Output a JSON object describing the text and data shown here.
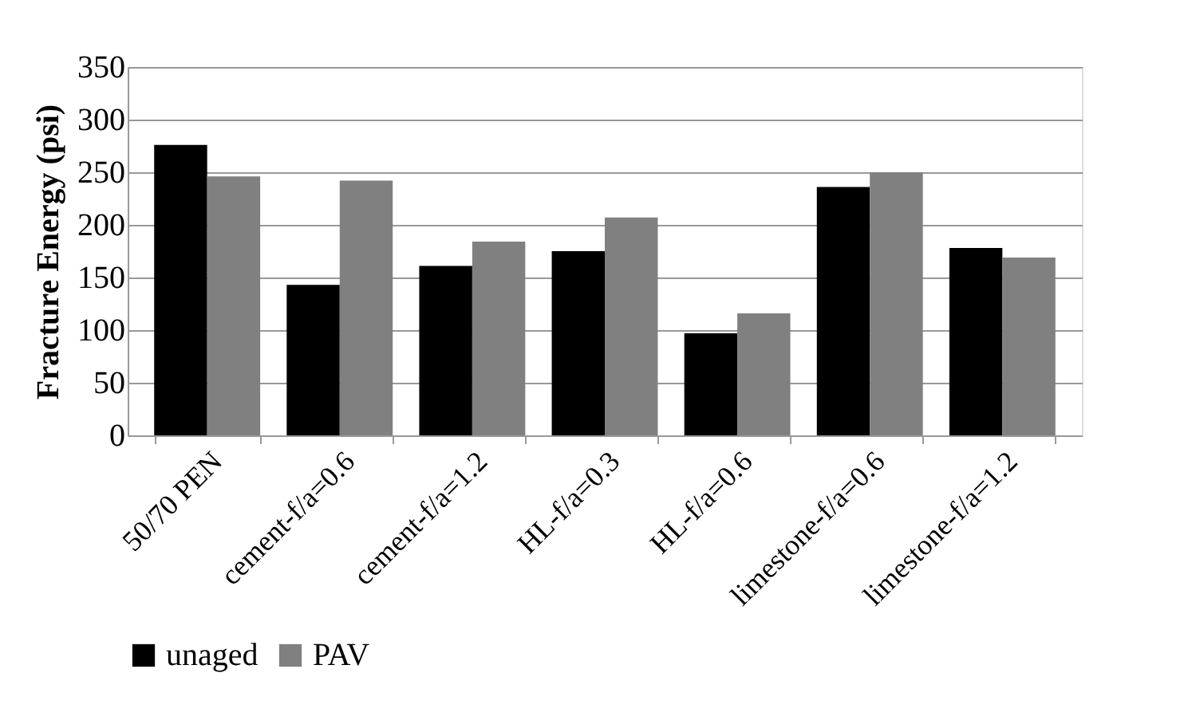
{
  "chart_data": {
    "type": "bar",
    "ylabel": "Fracture Energy (psi)",
    "categories": [
      "50/70 PEN",
      "cement-f/a=0.6",
      "cement-f/a=1.2",
      "HL-f/a=0.3",
      "HL-f/a=0.6",
      "limestone-f/a=0.6",
      "limestone-f/a=1.2"
    ],
    "series": [
      {
        "name": "unaged",
        "color": "#000000",
        "values": [
          276,
          143,
          161,
          175,
          97,
          236,
          178
        ]
      },
      {
        "name": "PAV",
        "color": "#808080",
        "values": [
          246,
          242,
          184,
          207,
          116,
          250,
          169
        ]
      }
    ],
    "ylim": [
      0,
      350
    ],
    "yticks": [
      0,
      50,
      100,
      150,
      200,
      250,
      300,
      350
    ],
    "grid": "y",
    "legend": "bottom"
  }
}
